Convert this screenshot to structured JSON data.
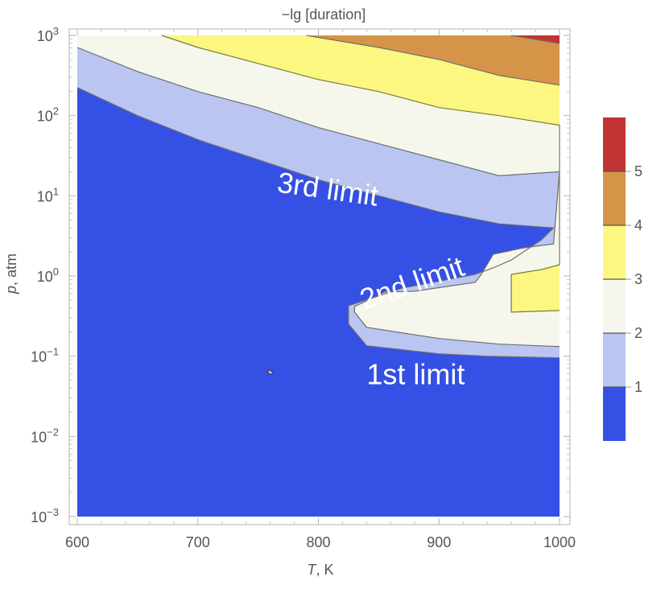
{
  "chart_data": {
    "type": "contour",
    "title": "−lg [duration]",
    "xlabel_var": "T",
    "xlabel_unit": ", K",
    "ylabel_var": "p",
    "ylabel_unit": ", atm",
    "x_range": [
      600,
      1000
    ],
    "y_range_log10": [
      -3,
      3
    ],
    "y_scale": "log",
    "x_ticks": [
      600,
      700,
      800,
      900,
      1000
    ],
    "y_tick_exponents": [
      "-3",
      "-2",
      "-1",
      "0",
      "1",
      "2",
      "3"
    ],
    "y_tick_base": "10",
    "levels": [
      {
        "label": "0–1",
        "color": "#3550e4"
      },
      {
        "label": "1–2",
        "color": "#bac5f1"
      },
      {
        "label": "2–3",
        "color": "#f6f7ec"
      },
      {
        "label": "3–4",
        "color": "#fbf781"
      },
      {
        "label": "4–5",
        "color": "#d69449"
      },
      {
        "label": "5+",
        "color": "#c13434"
      }
    ],
    "contours": [
      {
        "level": 1,
        "points": [
          [
            600,
            2.35
          ],
          [
            650,
            2.0
          ],
          [
            700,
            1.7
          ],
          [
            750,
            1.45
          ],
          [
            800,
            1.2
          ],
          [
            850,
            1.0
          ],
          [
            900,
            0.8
          ],
          [
            950,
            0.65
          ],
          [
            995,
            0.6
          ],
          [
            985,
            0.45
          ],
          [
            970,
            0.3
          ],
          [
            960,
            0.2
          ],
          [
            945,
            0.1
          ],
          [
            930,
            0.02
          ],
          [
            870,
            -0.15
          ],
          [
            825,
            -0.37
          ],
          [
            825,
            -0.6
          ],
          [
            840,
            -0.87
          ],
          [
            900,
            -0.97
          ],
          [
            940,
            -1.0
          ],
          [
            1000,
            -1.02
          ]
        ]
      },
      {
        "level": 2,
        "points": [
          [
            600,
            2.85
          ],
          [
            650,
            2.55
          ],
          [
            700,
            2.3
          ],
          [
            750,
            2.1
          ],
          [
            800,
            1.85
          ],
          [
            850,
            1.65
          ],
          [
            900,
            1.45
          ],
          [
            950,
            1.25
          ],
          [
            1000,
            1.3
          ],
          [
            995,
            0.4
          ],
          [
            970,
            0.35
          ],
          [
            945,
            0.27
          ],
          [
            935,
            0.02
          ],
          [
            930,
            -0.08
          ],
          [
            880,
            -0.19
          ],
          [
            855,
            -0.2
          ],
          [
            830,
            -0.38
          ],
          [
            830,
            -0.45
          ],
          [
            840,
            -0.64
          ],
          [
            900,
            -0.78
          ],
          [
            950,
            -0.85
          ],
          [
            1000,
            -0.88
          ]
        ]
      },
      {
        "level": 3,
        "points": [
          [
            670,
            3.0
          ],
          [
            700,
            2.85
          ],
          [
            750,
            2.65
          ],
          [
            800,
            2.45
          ],
          [
            850,
            2.3
          ],
          [
            900,
            2.1
          ],
          [
            950,
            2.0
          ],
          [
            1000,
            1.88
          ],
          [
            1000,
            0.14
          ],
          [
            985,
            0.08
          ],
          [
            960,
            0.02
          ],
          [
            960,
            -0.45
          ],
          [
            1000,
            -0.43
          ]
        ]
      },
      {
        "level": 4,
        "points": [
          [
            790,
            3.0
          ],
          [
            850,
            2.85
          ],
          [
            900,
            2.7
          ],
          [
            950,
            2.5
          ],
          [
            1000,
            2.38
          ]
        ]
      },
      {
        "level": 5,
        "points": [
          [
            960,
            3.0
          ],
          [
            1000,
            2.9
          ]
        ]
      }
    ],
    "point_marker": {
      "x": 760,
      "y_log10": -1.2
    },
    "annotations": [
      {
        "text": "3rd limit",
        "x": 765,
        "y_log10": 1.05,
        "rotate": 8
      },
      {
        "text": "2nd limit",
        "x": 838,
        "y_log10": -0.42,
        "rotate": -19
      },
      {
        "text": "1st limit",
        "x": 840,
        "y_log10": -1.35,
        "rotate": 0
      }
    ],
    "legend": {
      "placement": "right",
      "ticks": [
        "1",
        "2",
        "3",
        "4",
        "5"
      ]
    }
  }
}
